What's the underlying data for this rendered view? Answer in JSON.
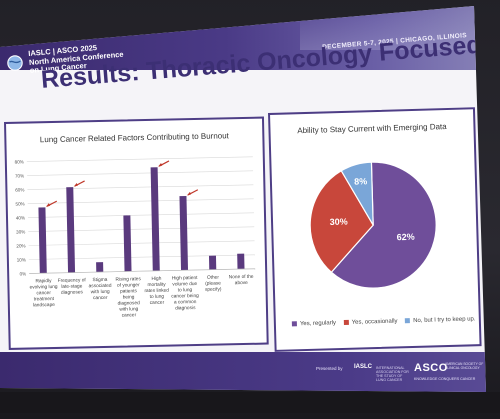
{
  "header": {
    "logo_line1": "IASLC | ASCO 2025",
    "logo_line2": "North America Conference",
    "logo_line3": "on Lung Cancer",
    "date_location": "DECEMBER 5-7, 2025 | CHICAGO, ILLINOIS"
  },
  "slide_title": "Results: Thoracic Oncology Focused",
  "footer": {
    "presented_by": "Presented by",
    "iaslc_logo": "IASLC",
    "iaslc_tagline": "INTERNATIONAL ASSOCIATION FOR THE STUDY OF LUNG CANCER",
    "asco_logo": "ASCO",
    "asco_sub": "AMERICAN SOCIETY OF CLINICAL ONCOLOGY",
    "asco_tagline": "KNOWLEDGE CONQUERS CANCER"
  },
  "colors": {
    "brand_purple": "#4e3e86",
    "bar_purple": "#5a3a7e",
    "pie_purple": "#6f4e9a",
    "pie_red": "#c8473b",
    "pie_blue": "#7aa6d8",
    "arrow_red": "#c0392b"
  },
  "chart_data": [
    {
      "type": "bar",
      "title": "Lung Cancer Related Factors Contributing to Burnout",
      "categories": [
        "Rapidly evolving lung cancer treatment landscape",
        "Frequency of late-stage diagnoses",
        "Stigma associated with lung cancer",
        "Rising rates of younger patients being diagnosed with lung cancer",
        "High mortality rates linked to lung cancer",
        "High patient volume due to lung cancer being a common diagnosis",
        "Other (please specify)",
        "None of the above"
      ],
      "category_lines": [
        [
          "Rapidly",
          "evolving lung",
          "cancer",
          "treatment",
          "landscape"
        ],
        [
          "Frequency of",
          "late-stage",
          "diagnoses"
        ],
        [
          "Stigma",
          "associated",
          "with lung",
          "cancer"
        ],
        [
          "Rising rates",
          "of younger",
          "patients",
          "being",
          "diagnosed",
          "with lung",
          "cancer"
        ],
        [
          "High",
          "mortality",
          "rates linked",
          "to lung",
          "cancer"
        ],
        [
          "High patient",
          "volume due",
          "to lung",
          "cancer being",
          "a common",
          "diagnosis"
        ],
        [
          "Other",
          "(please",
          "specify)"
        ],
        [
          "None of the",
          "above"
        ]
      ],
      "values": [
        47,
        61,
        7,
        40,
        74,
        53,
        10,
        11
      ],
      "arrows_on": [
        0,
        1,
        4,
        5
      ],
      "yticks": [
        "0%",
        "10%",
        "20%",
        "30%",
        "40%",
        "50%",
        "60%",
        "70%",
        "80%"
      ],
      "ylim": [
        0,
        80
      ],
      "grid": true
    },
    {
      "type": "pie",
      "title": "Ability to Stay Current with Emerging Data",
      "slices": [
        {
          "label": "Yes, regularly",
          "value": 62,
          "text": "62%"
        },
        {
          "label": "Yes, occasionally",
          "value": 30,
          "text": "30%"
        },
        {
          "label": "No, but I try to keep up.",
          "value": 8,
          "text": "8%"
        }
      ],
      "legend": "bottom"
    }
  ]
}
